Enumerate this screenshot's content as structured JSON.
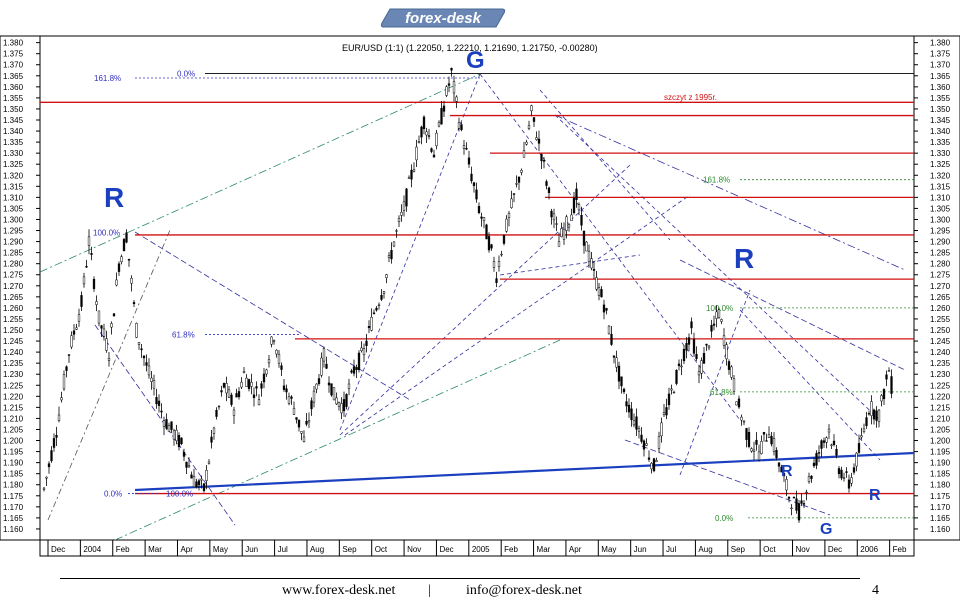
{
  "brand": {
    "logo_text": "forex-desk"
  },
  "chart_data": {
    "type": "candlestick",
    "title": "EUR/USD (1:1) (1.22050, 1.22210, 1.21690, 1.21750, -0.00280)",
    "ylim": [
      1.155,
      1.383
    ],
    "y_ticks": [
      "1.160",
      "1.165",
      "1.170",
      "1.175",
      "1.180",
      "1.185",
      "1.190",
      "1.195",
      "1.200",
      "1.205",
      "1.210",
      "1.215",
      "1.220",
      "1.225",
      "1.230",
      "1.235",
      "1.240",
      "1.245",
      "1.250",
      "1.255",
      "1.260",
      "1.265",
      "1.270",
      "1.275",
      "1.280",
      "1.285",
      "1.290",
      "1.295",
      "1.300",
      "1.305",
      "1.310",
      "1.315",
      "1.320",
      "1.325",
      "1.330",
      "1.335",
      "1.340",
      "1.345",
      "1.350",
      "1.355",
      "1.360",
      "1.365",
      "1.370",
      "1.375",
      "1.380"
    ],
    "x_ticks": [
      "Dec",
      "2004",
      "Feb",
      "Mar",
      "Apr",
      "May",
      "Jun",
      "Jul",
      "Aug",
      "Sep",
      "Oct",
      "Nov",
      "Dec",
      "2005",
      "Feb",
      "Mar",
      "Apr",
      "May",
      "Jun",
      "Jul",
      "Aug",
      "Sep",
      "Oct",
      "Nov",
      "Dec",
      "2006",
      "Feb"
    ],
    "price_path": [
      [
        0,
        1.178
      ],
      [
        5,
        1.205
      ],
      [
        10,
        1.24
      ],
      [
        15,
        1.262
      ],
      [
        18,
        1.29
      ],
      [
        22,
        1.255
      ],
      [
        26,
        1.24
      ],
      [
        30,
        1.28
      ],
      [
        33,
        1.293
      ],
      [
        37,
        1.25
      ],
      [
        42,
        1.23
      ],
      [
        48,
        1.21
      ],
      [
        55,
        1.198
      ],
      [
        60,
        1.182
      ],
      [
        64,
        1.178
      ],
      [
        68,
        1.205
      ],
      [
        72,
        1.225
      ],
      [
        76,
        1.215
      ],
      [
        80,
        1.23
      ],
      [
        86,
        1.22
      ],
      [
        92,
        1.248
      ],
      [
        96,
        1.225
      ],
      [
        100,
        1.215
      ],
      [
        104,
        1.2
      ],
      [
        108,
        1.22
      ],
      [
        112,
        1.238
      ],
      [
        116,
        1.22
      ],
      [
        120,
        1.215
      ],
      [
        124,
        1.232
      ],
      [
        128,
        1.24
      ],
      [
        132,
        1.258
      ],
      [
        136,
        1.27
      ],
      [
        140,
        1.29
      ],
      [
        144,
        1.305
      ],
      [
        148,
        1.325
      ],
      [
        152,
        1.345
      ],
      [
        156,
        1.33
      ],
      [
        160,
        1.352
      ],
      [
        163,
        1.366
      ],
      [
        166,
        1.345
      ],
      [
        170,
        1.325
      ],
      [
        174,
        1.305
      ],
      [
        178,
        1.29
      ],
      [
        181,
        1.275
      ],
      [
        184,
        1.292
      ],
      [
        188,
        1.31
      ],
      [
        192,
        1.328
      ],
      [
        195,
        1.348
      ],
      [
        199,
        1.33
      ],
      [
        203,
        1.305
      ],
      [
        206,
        1.29
      ],
      [
        210,
        1.3
      ],
      [
        213,
        1.31
      ],
      [
        216,
        1.292
      ],
      [
        220,
        1.275
      ],
      [
        224,
        1.262
      ],
      [
        228,
        1.24
      ],
      [
        232,
        1.22
      ],
      [
        236,
        1.21
      ],
      [
        240,
        1.2
      ],
      [
        244,
        1.188
      ],
      [
        248,
        1.21
      ],
      [
        252,
        1.225
      ],
      [
        256,
        1.24
      ],
      [
        259,
        1.25
      ],
      [
        262,
        1.23
      ],
      [
        266,
        1.245
      ],
      [
        270,
        1.258
      ],
      [
        274,
        1.235
      ],
      [
        278,
        1.215
      ],
      [
        282,
        1.2
      ],
      [
        286,
        1.195
      ],
      [
        290,
        1.205
      ],
      [
        294,
        1.19
      ],
      [
        298,
        1.175
      ],
      [
        302,
        1.168
      ],
      [
        306,
        1.182
      ],
      [
        310,
        1.195
      ],
      [
        314,
        1.205
      ],
      [
        318,
        1.188
      ],
      [
        322,
        1.18
      ],
      [
        326,
        1.195
      ],
      [
        330,
        1.215
      ],
      [
        334,
        1.212
      ],
      [
        338,
        1.232
      ],
      [
        340,
        1.218
      ]
    ],
    "resistance_levels": [
      1.353,
      1.347,
      1.33,
      1.31,
      1.293,
      1.273,
      1.246,
      1.176
    ],
    "fib_levels": [
      {
        "label": "161.8%",
        "value": 1.364
      },
      {
        "label": "0.0%",
        "value": 1.366
      },
      {
        "label": "100.0%",
        "value": 1.294
      },
      {
        "label": "61.8%",
        "value": 1.248
      },
      {
        "label": "0.0%",
        "value": 1.176
      },
      {
        "label": "100.0%",
        "value": 1.176
      },
      {
        "label": "161.8%",
        "value": 1.318
      },
      {
        "label": "100.0%",
        "value": 1.26
      },
      {
        "label": "61.8%",
        "value": 1.222
      },
      {
        "label": "0.0%",
        "value": 1.165
      }
    ],
    "annotations": [
      {
        "text": "G",
        "color": "#1a3fbf"
      },
      {
        "text": "R",
        "color": "#1a3fbf"
      },
      {
        "text": "R",
        "color": "#1a3fbf"
      },
      {
        "text": "R",
        "color": "#1a3fbf"
      },
      {
        "text": "R",
        "color": "#1a3fbf"
      },
      {
        "text": "G",
        "color": "#1a3fbf"
      },
      {
        "text": "szczyt z 1995r.",
        "color": "#d01010"
      }
    ],
    "colors": {
      "resistance": "#d01010",
      "support": "#1a3fbf",
      "fib_green": "#2e8b2e",
      "fib_blue": "#3030c0"
    }
  },
  "footer": {
    "website": "www.forex-desk.net",
    "separator": "|",
    "email": "info@forex-desk.net",
    "page_number": "4"
  }
}
